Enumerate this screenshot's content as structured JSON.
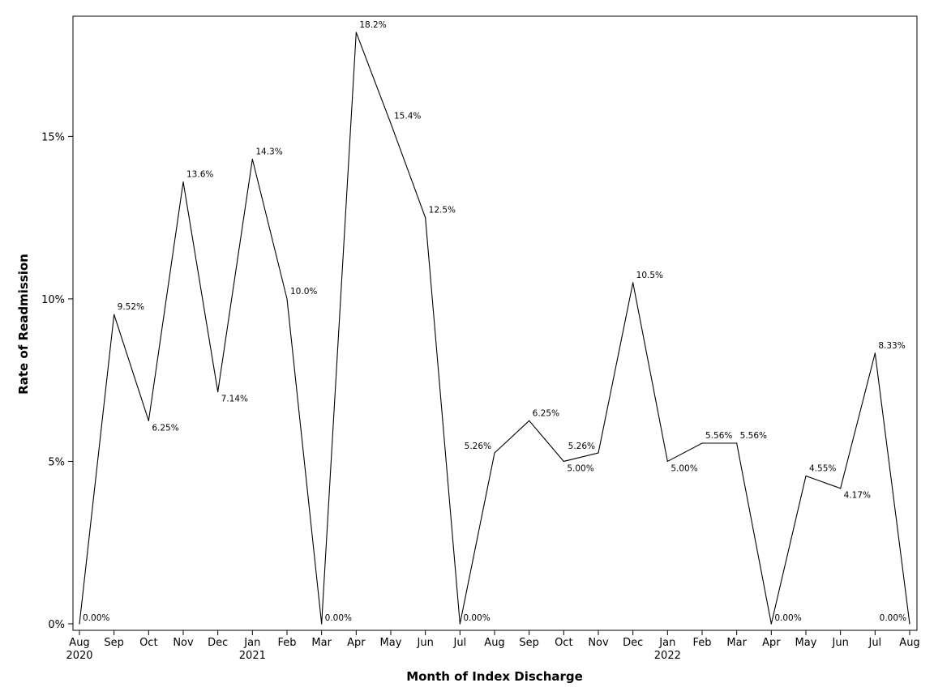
{
  "chart_data": {
    "type": "line",
    "title": "",
    "xlabel": "Month of Index Discharge",
    "ylabel": "Rate of Readmission",
    "x": [
      "2020-08",
      "2020-09",
      "2020-10",
      "2020-11",
      "2020-12",
      "2021-01",
      "2021-02",
      "2021-03",
      "2021-04",
      "2021-05",
      "2021-06",
      "2021-07",
      "2021-08",
      "2021-09",
      "2021-10",
      "2021-11",
      "2021-12",
      "2022-01",
      "2022-02",
      "2022-03",
      "2022-04",
      "2022-05",
      "2022-06",
      "2022-07",
      "2022-08"
    ],
    "x_tick_labels": [
      {
        "month": "Aug",
        "year": "2020"
      },
      {
        "month": "Sep",
        "year": ""
      },
      {
        "month": "Oct",
        "year": ""
      },
      {
        "month": "Nov",
        "year": ""
      },
      {
        "month": "Dec",
        "year": ""
      },
      {
        "month": "Jan",
        "year": "2021"
      },
      {
        "month": "Feb",
        "year": ""
      },
      {
        "month": "Mar",
        "year": ""
      },
      {
        "month": "Apr",
        "year": ""
      },
      {
        "month": "May",
        "year": ""
      },
      {
        "month": "Jun",
        "year": ""
      },
      {
        "month": "Jul",
        "year": ""
      },
      {
        "month": "Aug",
        "year": ""
      },
      {
        "month": "Sep",
        "year": ""
      },
      {
        "month": "Oct",
        "year": ""
      },
      {
        "month": "Nov",
        "year": ""
      },
      {
        "month": "Dec",
        "year": ""
      },
      {
        "month": "Jan",
        "year": "2022"
      },
      {
        "month": "Feb",
        "year": ""
      },
      {
        "month": "Mar",
        "year": ""
      },
      {
        "month": "Apr",
        "year": ""
      },
      {
        "month": "May",
        "year": ""
      },
      {
        "month": "Jun",
        "year": ""
      },
      {
        "month": "Jul",
        "year": ""
      },
      {
        "month": "Aug",
        "year": ""
      }
    ],
    "series": [
      {
        "values": [
          0.0,
          9.52,
          6.25,
          13.6,
          7.14,
          14.3,
          10.0,
          0.0,
          18.2,
          15.4,
          12.5,
          0.0,
          5.26,
          6.25,
          5.0,
          5.26,
          10.5,
          5.0,
          5.56,
          5.56,
          0.0,
          4.55,
          4.17,
          8.33,
          0.0
        ],
        "data_labels": [
          "0.00%",
          "9.52%",
          "6.25%",
          "13.6%",
          "7.14%",
          "14.3%",
          "10.0%",
          "0.00%",
          "18.2%",
          "15.4%",
          "12.5%",
          "0.00%",
          "5.26%",
          "6.25%",
          "5.00%",
          "5.26%",
          "10.5%",
          "5.00%",
          "5.56%",
          "5.56%",
          "0.00%",
          "4.55%",
          "4.17%",
          "8.33%",
          "0.00%"
        ]
      }
    ],
    "y_ticks": [
      0,
      5,
      10,
      15
    ],
    "y_tick_labels": [
      "0%",
      "5%",
      "10%",
      "15%"
    ],
    "ylim": [
      0,
      18.5
    ],
    "grid": false,
    "legend": "none",
    "line_color": "#000000"
  }
}
